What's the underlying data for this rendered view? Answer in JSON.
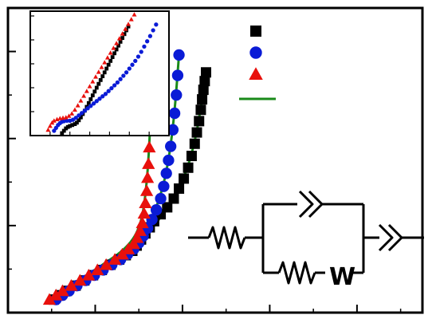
{
  "chart_data": [
    {
      "type": "scatter",
      "role": "main",
      "title": "",
      "xlabel": "",
      "ylabel": "",
      "tick_labels_visible": false,
      "grid": false,
      "legend_placement": "top-right",
      "fit_color": "#1a8a1a",
      "series": [
        {
          "marker": "square",
          "color": "#000000",
          "points": [
            [
              1.05,
              0.3
            ],
            [
              1.2,
              0.4
            ],
            [
              1.35,
              0.5
            ],
            [
              1.55,
              0.62
            ],
            [
              1.75,
              0.74
            ],
            [
              1.95,
              0.86
            ],
            [
              2.15,
              0.98
            ],
            [
              2.35,
              1.1
            ],
            [
              2.55,
              1.22
            ],
            [
              2.7,
              1.32
            ],
            [
              2.85,
              1.42
            ],
            [
              2.95,
              1.54
            ],
            [
              3.05,
              1.68
            ],
            [
              3.15,
              1.82
            ],
            [
              3.25,
              1.96
            ],
            [
              3.35,
              2.1
            ],
            [
              3.5,
              2.26
            ],
            [
              3.65,
              2.42
            ],
            [
              3.8,
              2.62
            ],
            [
              3.92,
              2.85
            ],
            [
              4.03,
              3.08
            ],
            [
              4.13,
              3.33
            ],
            [
              4.21,
              3.6
            ],
            [
              4.28,
              3.88
            ],
            [
              4.33,
              4.14
            ],
            [
              4.38,
              4.4
            ],
            [
              4.42,
              4.66
            ],
            [
              4.45,
              4.9
            ],
            [
              4.48,
              5.12
            ],
            [
              4.51,
              5.32
            ],
            [
              4.54,
              5.52
            ]
          ],
          "fit": [
            [
              1.1,
              0.35
            ],
            [
              2.1,
              0.95
            ],
            [
              2.9,
              1.45
            ],
            [
              3.4,
              2.05
            ],
            [
              3.8,
              2.62
            ],
            [
              4.1,
              3.25
            ],
            [
              4.3,
              4.0
            ],
            [
              4.42,
              4.7
            ],
            [
              4.55,
              5.5
            ]
          ]
        },
        {
          "marker": "circle",
          "color": "#0a1bd6",
          "points": [
            [
              1.1,
              0.3
            ],
            [
              1.25,
              0.4
            ],
            [
              1.4,
              0.5
            ],
            [
              1.58,
              0.62
            ],
            [
              1.78,
              0.74
            ],
            [
              1.98,
              0.86
            ],
            [
              2.18,
              0.98
            ],
            [
              2.38,
              1.1
            ],
            [
              2.58,
              1.22
            ],
            [
              2.74,
              1.34
            ],
            [
              2.88,
              1.46
            ],
            [
              3.0,
              1.6
            ],
            [
              3.1,
              1.76
            ],
            [
              3.2,
              1.94
            ],
            [
              3.3,
              2.14
            ],
            [
              3.4,
              2.36
            ],
            [
              3.5,
              2.62
            ],
            [
              3.57,
              2.9
            ],
            [
              3.63,
              3.2
            ],
            [
              3.68,
              3.5
            ],
            [
              3.73,
              3.82
            ],
            [
              3.78,
              4.2
            ],
            [
              3.82,
              4.58
            ],
            [
              3.86,
              5.0
            ],
            [
              3.89,
              5.45
            ],
            [
              3.92,
              5.92
            ]
          ],
          "fit": [
            [
              1.1,
              0.35
            ],
            [
              2.2,
              1.0
            ],
            [
              2.9,
              1.5
            ],
            [
              3.3,
              2.15
            ],
            [
              3.55,
              2.85
            ],
            [
              3.7,
              3.6
            ],
            [
              3.82,
              4.6
            ],
            [
              3.92,
              5.92
            ]
          ]
        },
        {
          "marker": "triangle",
          "color": "#e8100c",
          "points": [
            [
              0.95,
              0.3
            ],
            [
              1.1,
              0.4
            ],
            [
              1.25,
              0.5
            ],
            [
              1.45,
              0.62
            ],
            [
              1.65,
              0.74
            ],
            [
              1.85,
              0.86
            ],
            [
              2.05,
              0.98
            ],
            [
              2.25,
              1.1
            ],
            [
              2.45,
              1.22
            ],
            [
              2.62,
              1.34
            ],
            [
              2.76,
              1.46
            ],
            [
              2.88,
              1.58
            ],
            [
              2.96,
              1.72
            ],
            [
              3.03,
              1.88
            ],
            [
              3.08,
              2.06
            ],
            [
              3.12,
              2.28
            ],
            [
              3.15,
              2.52
            ],
            [
              3.18,
              2.8
            ],
            [
              3.2,
              3.1
            ],
            [
              3.22,
              3.42
            ],
            [
              3.24,
              3.8
            ],
            [
              3.26,
              4.25
            ],
            [
              3.28,
              4.72
            ],
            [
              3.3,
              5.25
            ],
            [
              3.32,
              5.8
            ],
            [
              3.34,
              6.4
            ]
          ],
          "fit": [
            [
              1.0,
              0.35
            ],
            [
              2.1,
              1.05
            ],
            [
              2.75,
              1.5
            ],
            [
              3.05,
              2.0
            ],
            [
              3.18,
              2.9
            ],
            [
              3.26,
              4.2
            ],
            [
              3.34,
              6.4
            ]
          ]
        }
      ]
    },
    {
      "type": "scatter",
      "role": "inset",
      "tick_labels_visible": false,
      "series": [
        {
          "marker": "square",
          "color": "#000000",
          "points": [
            [
              1.6,
              0.05
            ],
            [
              1.7,
              0.1
            ],
            [
              1.8,
              0.15
            ],
            [
              1.9,
              0.18
            ],
            [
              2.0,
              0.2
            ],
            [
              2.12,
              0.22
            ],
            [
              2.25,
              0.24
            ],
            [
              2.35,
              0.27
            ],
            [
              2.45,
              0.32
            ],
            [
              2.55,
              0.38
            ],
            [
              2.65,
              0.45
            ],
            [
              2.75,
              0.52
            ],
            [
              2.85,
              0.6
            ],
            [
              2.95,
              0.68
            ],
            [
              3.05,
              0.76
            ],
            [
              3.15,
              0.84
            ],
            [
              3.25,
              0.92
            ],
            [
              3.35,
              1.0
            ],
            [
              3.45,
              1.08
            ],
            [
              3.55,
              1.16
            ],
            [
              3.65,
              1.24
            ],
            [
              3.75,
              1.32
            ],
            [
              3.85,
              1.4
            ],
            [
              3.95,
              1.48
            ],
            [
              4.05,
              1.56
            ],
            [
              4.15,
              1.64
            ],
            [
              4.25,
              1.72
            ],
            [
              4.35,
              1.8
            ],
            [
              4.45,
              1.88
            ],
            [
              4.55,
              1.96
            ],
            [
              4.65,
              2.04
            ],
            [
              4.75,
              2.12
            ],
            [
              4.85,
              2.2
            ],
            [
              4.95,
              2.28
            ]
          ]
        },
        {
          "marker": "circle",
          "color": "#0a1bd6",
          "points": [
            [
              1.2,
              0.1
            ],
            [
              1.3,
              0.16
            ],
            [
              1.4,
              0.22
            ],
            [
              1.5,
              0.26
            ],
            [
              1.6,
              0.29
            ],
            [
              1.7,
              0.3
            ],
            [
              1.85,
              0.31
            ],
            [
              2.0,
              0.31
            ],
            [
              2.15,
              0.33
            ],
            [
              2.3,
              0.37
            ],
            [
              2.45,
              0.42
            ],
            [
              2.6,
              0.47
            ],
            [
              2.75,
              0.52
            ],
            [
              2.9,
              0.57
            ],
            [
              3.05,
              0.62
            ],
            [
              3.2,
              0.67
            ],
            [
              3.35,
              0.72
            ],
            [
              3.5,
              0.77
            ],
            [
              3.65,
              0.82
            ],
            [
              3.8,
              0.87
            ],
            [
              3.95,
              0.93
            ],
            [
              4.1,
              0.99
            ],
            [
              4.25,
              1.05
            ],
            [
              4.4,
              1.11
            ],
            [
              4.55,
              1.18
            ],
            [
              4.7,
              1.25
            ],
            [
              4.85,
              1.32
            ],
            [
              5.0,
              1.4
            ],
            [
              5.15,
              1.48
            ],
            [
              5.3,
              1.56
            ],
            [
              5.45,
              1.65
            ],
            [
              5.6,
              1.75
            ],
            [
              5.75,
              1.86
            ],
            [
              5.9,
              1.97
            ],
            [
              6.05,
              2.08
            ],
            [
              6.2,
              2.2
            ],
            [
              6.35,
              2.32
            ]
          ]
        },
        {
          "marker": "triangle",
          "color": "#e8100c",
          "points": [
            [
              0.9,
              0.12
            ],
            [
              1.0,
              0.2
            ],
            [
              1.1,
              0.27
            ],
            [
              1.2,
              0.31
            ],
            [
              1.35,
              0.34
            ],
            [
              1.5,
              0.36
            ],
            [
              1.65,
              0.37
            ],
            [
              1.8,
              0.38
            ],
            [
              1.95,
              0.41
            ],
            [
              2.1,
              0.46
            ],
            [
              2.25,
              0.54
            ],
            [
              2.4,
              0.63
            ],
            [
              2.55,
              0.73
            ],
            [
              2.7,
              0.83
            ],
            [
              2.85,
              0.93
            ],
            [
              3.0,
              1.03
            ],
            [
              3.15,
              1.13
            ],
            [
              3.3,
              1.23
            ],
            [
              3.45,
              1.33
            ],
            [
              3.6,
              1.43
            ],
            [
              3.75,
              1.53
            ],
            [
              3.9,
              1.63
            ],
            [
              4.05,
              1.73
            ],
            [
              4.2,
              1.83
            ],
            [
              4.35,
              1.93
            ],
            [
              4.5,
              2.03
            ],
            [
              4.65,
              2.13
            ],
            [
              4.8,
              2.23
            ],
            [
              4.95,
              2.33
            ],
            [
              5.1,
              2.43
            ],
            [
              5.25,
              2.53
            ]
          ]
        }
      ]
    }
  ],
  "circuit": {
    "description_symbols": [
      "resistor",
      "constant-phase-element",
      "resistor",
      "warburg",
      "constant-phase-element"
    ],
    "warburg_label": "W"
  }
}
